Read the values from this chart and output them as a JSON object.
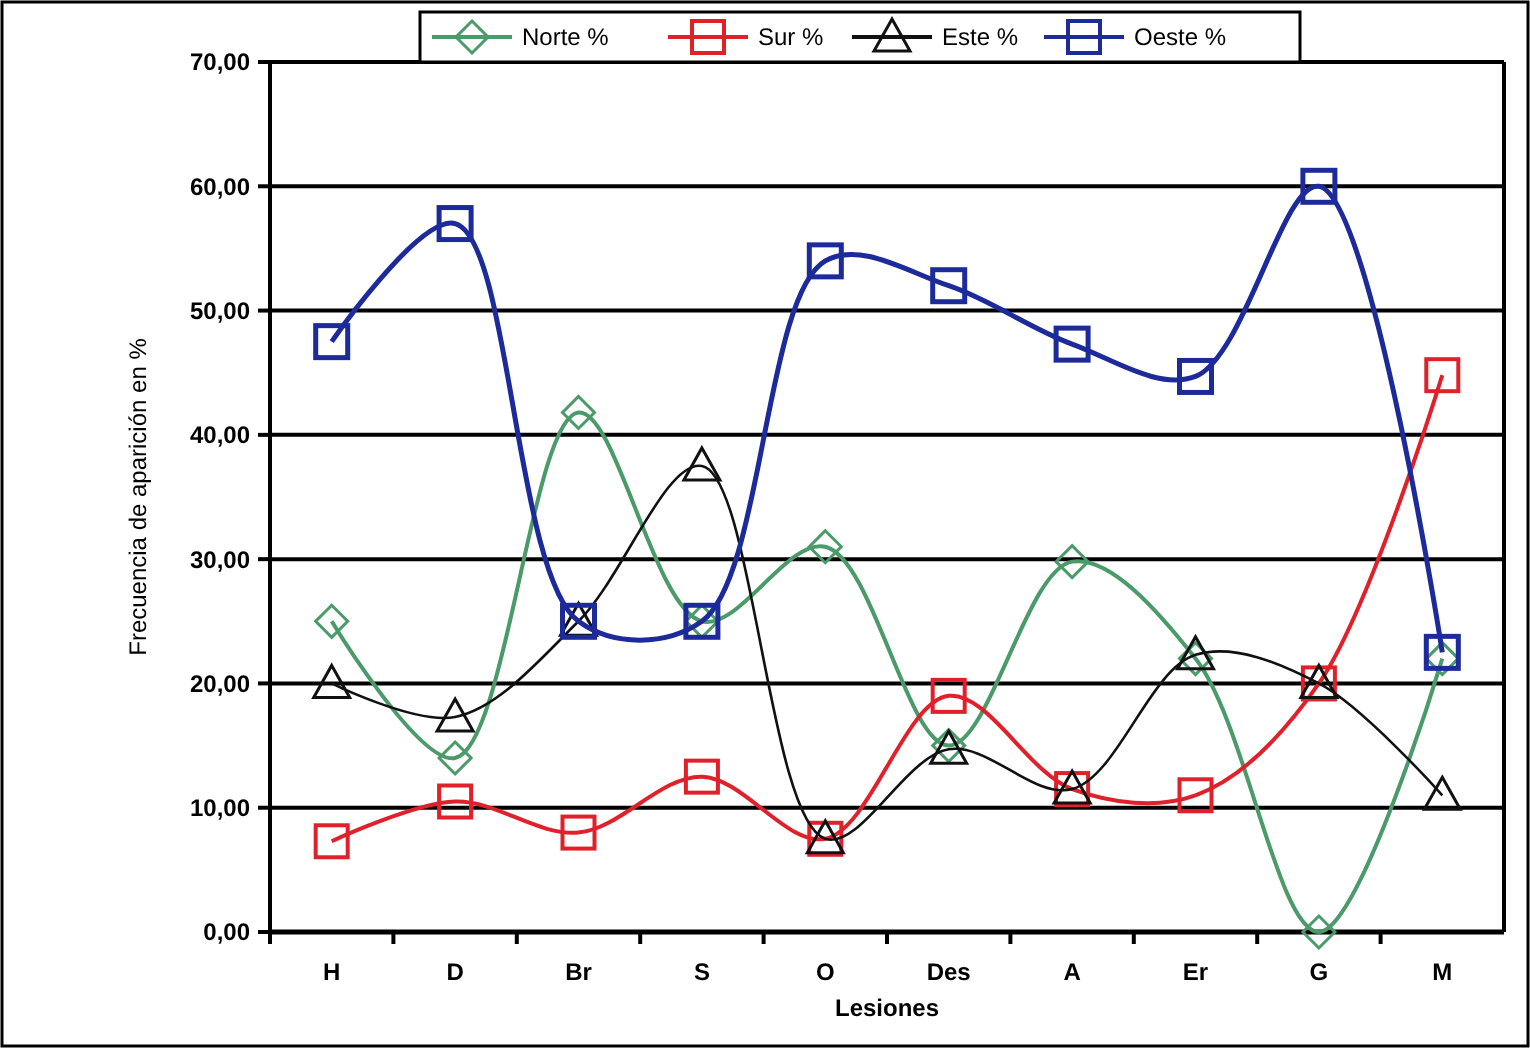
{
  "chart_data": {
    "type": "line",
    "xlabel": "Lesiones",
    "ylabel": "Frecuencia de aparición en %",
    "categories": [
      "H",
      "D",
      "Br",
      "S",
      "O",
      "Des",
      "A",
      "Er",
      "G",
      "M"
    ],
    "series": [
      {
        "name": "Norte %",
        "color": "#4a9a6a",
        "marker": "diamond",
        "values": [
          25,
          14,
          41.8,
          25,
          31,
          15,
          29.8,
          22,
          0,
          22
        ]
      },
      {
        "name": "Sur %",
        "color": "#e0202a",
        "marker": "square",
        "values": [
          7.3,
          10.5,
          8,
          12.5,
          7.5,
          19,
          11.5,
          11,
          20,
          44.8
        ]
      },
      {
        "name": "Este %",
        "color": "#111111",
        "marker": "triangle",
        "values": [
          20,
          17.3,
          25,
          37.5,
          7.5,
          14.7,
          11.5,
          22.3,
          20,
          11
        ]
      },
      {
        "name": "Oeste %",
        "color": "#1c2a9a",
        "marker": "square",
        "values": [
          47.5,
          57,
          25,
          25,
          54,
          52,
          47.3,
          44.7,
          60,
          22.5
        ]
      }
    ],
    "ylim": [
      0,
      70
    ],
    "yticks": [
      {
        "value": 0,
        "label": "0,00"
      },
      {
        "value": 10,
        "label": "10,00"
      },
      {
        "value": 20,
        "label": "20,00"
      },
      {
        "value": 30,
        "label": "30,00"
      },
      {
        "value": 40,
        "label": "40,00"
      },
      {
        "value": 50,
        "label": "50,00"
      },
      {
        "value": 60,
        "label": "60,00"
      },
      {
        "value": 70,
        "label": "70,00"
      }
    ],
    "grid": "y",
    "legend": "top",
    "line_style": "solid"
  }
}
